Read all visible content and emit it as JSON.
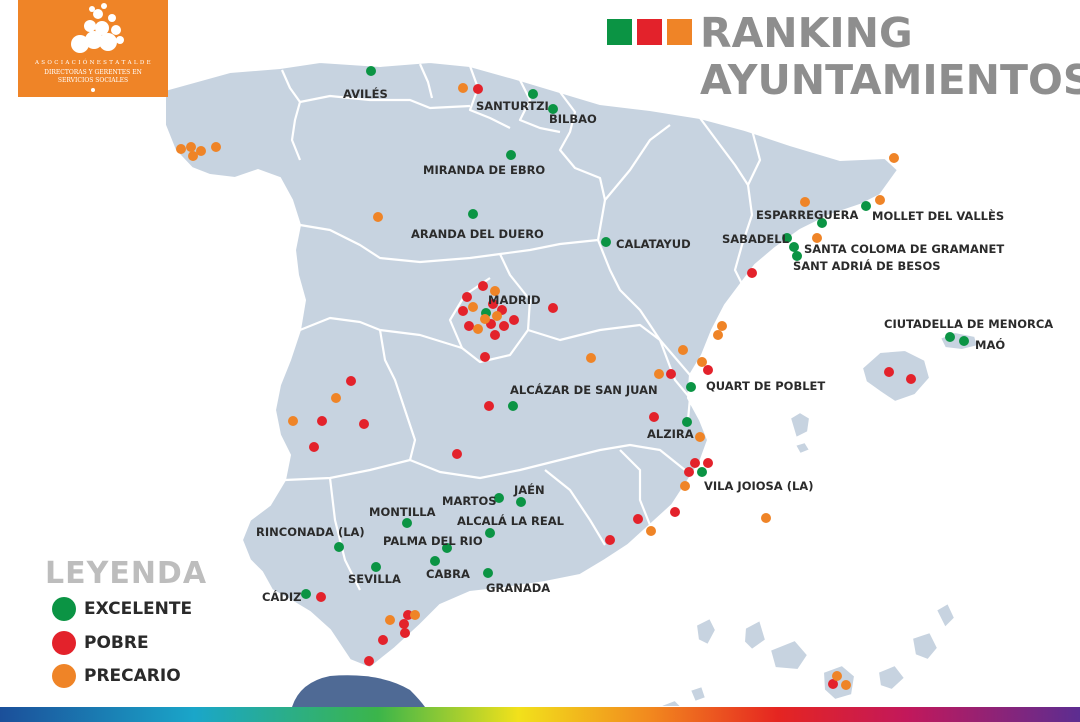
{
  "logo": {
    "line1": "A S O C I A C I Ó N E S T A T A L D E",
    "line2": "DIRECTORAS Y GERENTES EN",
    "line3": "SERVICIOS SOCIALES"
  },
  "title": {
    "line1": "RANKING",
    "line2": "AYUNTAMIENTOS"
  },
  "legend": {
    "title": "LEYENDA",
    "items": [
      {
        "label": "EXCELENTE",
        "color": "#0b9444"
      },
      {
        "label": "POBRE",
        "color": "#e3222b"
      },
      {
        "label": "PRECARIO",
        "color": "#ef8427"
      }
    ]
  },
  "colors": {
    "land": "#c7d3e0",
    "border": "#ffffff",
    "sea": "#ffffff",
    "africa": "#4f6a95",
    "excelente": "#0b9444",
    "pobre": "#e3222b",
    "precario": "#ef8427"
  },
  "cities": [
    {
      "name": "AVILÉS",
      "status": "excelente"
    },
    {
      "name": "SANTURTZI",
      "status": "excelente"
    },
    {
      "name": "BILBAO",
      "status": "excelente"
    },
    {
      "name": "MIRANDA DE EBRO",
      "status": "excelente"
    },
    {
      "name": "ARANDA DEL DUERO",
      "status": "excelente"
    },
    {
      "name": "CALATAYUD",
      "status": "excelente"
    },
    {
      "name": "ESPARREGUERA",
      "status": "excelente"
    },
    {
      "name": "MOLLET DEL VALLÈS",
      "status": "excelente"
    },
    {
      "name": "SABADELL",
      "status": "excelente"
    },
    {
      "name": "SANTA COLOMA DE GRAMANET",
      "status": "excelente"
    },
    {
      "name": "SANT ADRIÁ DE BESOS",
      "status": "excelente"
    },
    {
      "name": "MADRID",
      "status": "excelente"
    },
    {
      "name": "CIUTADELLA DE MENORCA",
      "status": "excelente"
    },
    {
      "name": "MAÓ",
      "status": "excelente"
    },
    {
      "name": "QUART DE POBLET",
      "status": "excelente"
    },
    {
      "name": "ALCÁZAR DE SAN JUAN",
      "status": "excelente"
    },
    {
      "name": "ALZIRA",
      "status": "excelente"
    },
    {
      "name": "VILA JOIOSA (LA)",
      "status": "excelente"
    },
    {
      "name": "JAÉN",
      "status": "excelente"
    },
    {
      "name": "MARTOS",
      "status": "excelente"
    },
    {
      "name": "MONTILLA",
      "status": "excelente"
    },
    {
      "name": "ALCALÁ LA REAL",
      "status": "excelente"
    },
    {
      "name": "RINCONADA (LA)",
      "status": "excelente"
    },
    {
      "name": "PALMA DEL RIO",
      "status": "excelente"
    },
    {
      "name": "SEVILLA",
      "status": "excelente"
    },
    {
      "name": "CABRA",
      "status": "excelente"
    },
    {
      "name": "GRANADA",
      "status": "excelente"
    },
    {
      "name": "CÁDIZ",
      "status": "excelente"
    }
  ]
}
